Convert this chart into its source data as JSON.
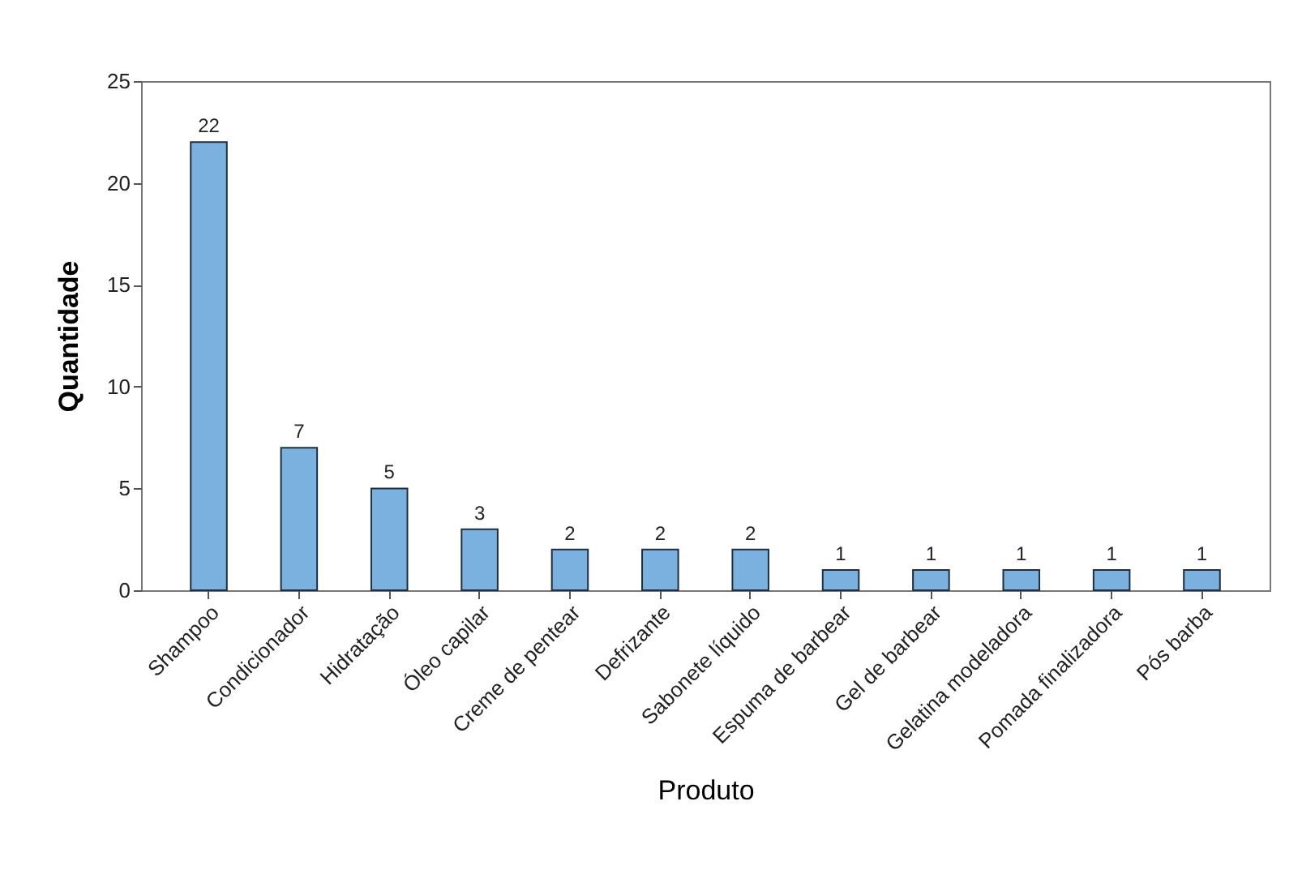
{
  "chart_data": {
    "type": "bar",
    "xlabel": "Produto",
    "ylabel": "Quantidade",
    "categories": [
      "Shampoo",
      "Condicionador",
      "Hidratação",
      "Óleo capilar",
      "Creme de pentear",
      "Defrizante",
      "Sabonete líquido",
      "Espuma de barbear",
      "Gel de barbear",
      "Gelatina modeladora",
      "Pomada finalizadora",
      "Pós barba"
    ],
    "values": [
      22,
      7,
      5,
      3,
      2,
      2,
      2,
      1,
      1,
      1,
      1,
      1
    ],
    "color": "#7bb1de",
    "ylim": [
      0,
      25
    ],
    "yticks": [
      0,
      5,
      10,
      15,
      20,
      25
    ],
    "grid": false,
    "data_labels": true
  }
}
